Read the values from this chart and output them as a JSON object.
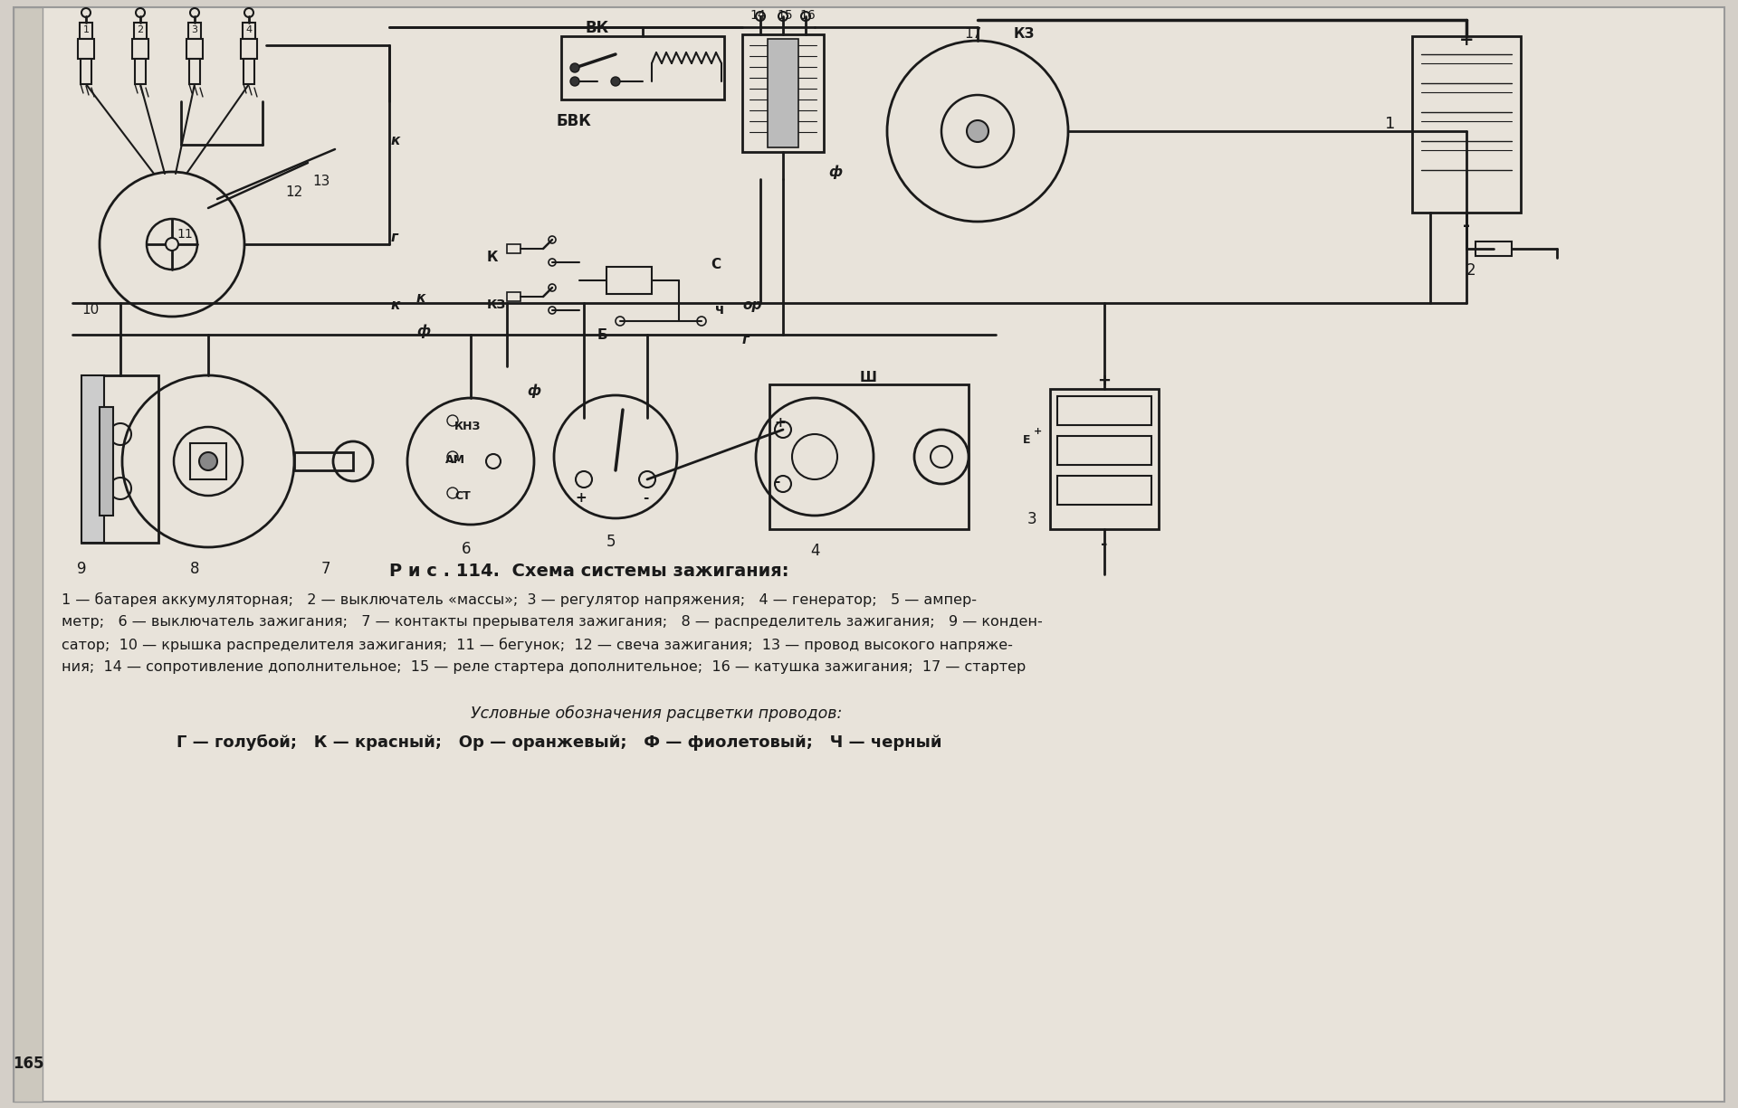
{
  "bg_color": "#d4cfc8",
  "line_color": "#1a1a1a",
  "page_bg": "#e8e3da",
  "title": "Р и с . 114.  Схема системы зажигания:",
  "caption_line1": "1 — батарея аккумуляторная;   2 — выключатель «массы»;  3 — регулятор напряжения;   4 — генератор;   5 — ампер-",
  "caption_line2": "метр;   6 — выключатель зажигания;   7 — контакты прерывателя зажигания;   8 — распределитель зажигания;   9 — конден-",
  "caption_line3": "сатор;  10 — крышка распределителя зажигания;  11 — бегунок;  12 — свеча зажигания;  13 — провод высокого напряже-",
  "caption_line4": "ния;  14 — сопротивление дополнительное;  15 — реле стартера дополнительное;  16 — катушка зажигания;  17 — стартер",
  "legend_title": "Условные обозначения расцветки проводов:",
  "legend_line": "Г — голубой;   К — красный;   Ор — оранжевый;   Ф — фиолетовый;   Ч — черный",
  "page_number": "165",
  "labels": {
    "vk": "ВК",
    "bvk": "БВК",
    "kz": "КЗ",
    "k_top": "к",
    "k_mid": "к",
    "g_top": "г",
    "phi_top": "ф",
    "phi_mid": "ф",
    "c_label": "С",
    "ch_label": "ч",
    "or_label": "ор",
    "sh_label": "Ш",
    "k_conn": "К",
    "kz_conn": "КЗ",
    "b_conn": "Б",
    "am_conn": "АМ",
    "st_conn": "СТ",
    "knz_conn": "КНЗ",
    "plus": "+",
    "minus": "-",
    "num_17": "17"
  }
}
